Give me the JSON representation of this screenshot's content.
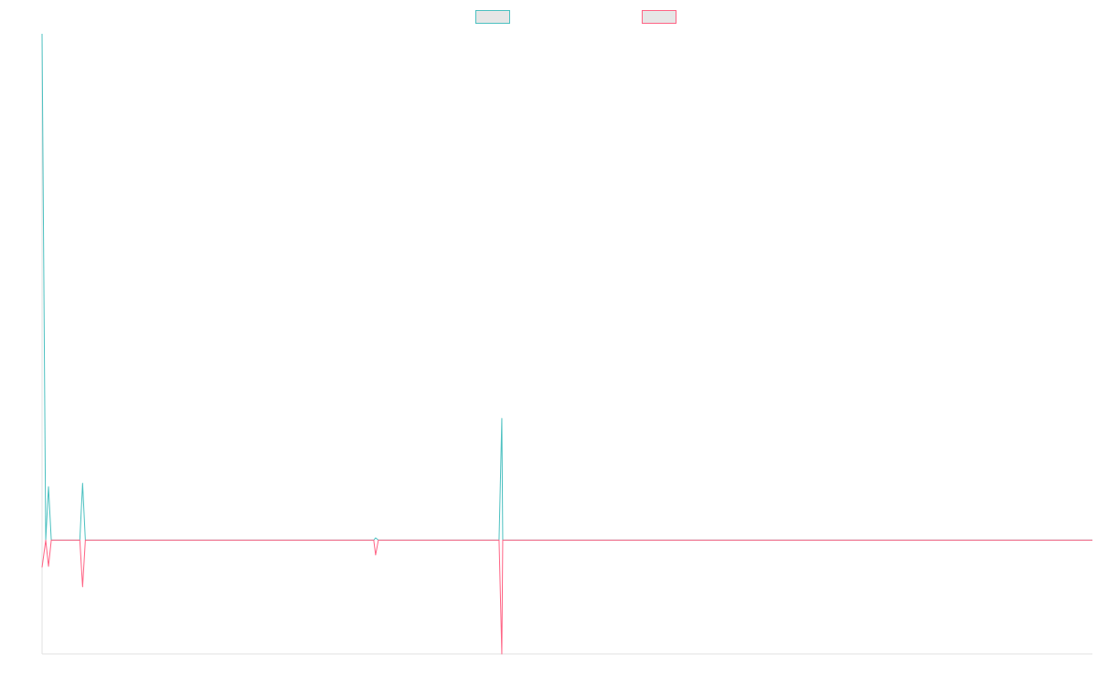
{
  "chart_data": {
    "type": "line",
    "title": "",
    "xlabel": "",
    "ylabel": "",
    "grid": false,
    "legend_placement": "top-center",
    "x_count": 115,
    "xlim": [
      0,
      114
    ],
    "ylim": [
      -100,
      445
    ],
    "series": [
      {
        "color": "#4bc0c0",
        "fill": "#e6e6e6",
        "values": [
          445,
          0,
          0,
          0,
          0,
          0,
          0,
          0,
          0,
          0,
          0,
          0,
          0,
          0,
          0,
          0,
          0,
          0,
          0,
          0,
          0,
          0,
          0,
          0,
          0,
          0,
          0,
          0,
          0,
          0,
          0,
          0,
          0,
          0,
          0,
          0,
          0,
          0,
          0,
          0,
          0,
          0,
          0,
          0,
          0,
          0,
          0,
          0,
          0,
          0,
          0,
          0,
          0,
          0,
          0,
          0,
          0,
          0,
          0,
          0,
          0,
          0,
          0,
          0,
          0,
          0,
          0,
          0,
          0,
          0,
          0,
          0,
          0,
          0,
          0,
          0,
          0,
          0,
          0,
          0,
          0,
          0,
          0,
          0,
          0,
          0,
          0,
          0,
          0,
          0,
          0,
          0,
          0,
          0,
          0,
          0,
          0,
          0,
          0,
          0,
          0,
          0,
          0,
          0,
          0,
          0,
          0,
          0,
          0,
          0,
          0,
          0,
          0,
          0,
          0
        ],
        "spikes": [
          {
            "x": 0.7,
            "y": 47
          },
          {
            "x": 4.4,
            "y": 50
          },
          {
            "x": 36.2,
            "y": 2
          },
          {
            "x": 49.9,
            "y": 107
          }
        ]
      },
      {
        "color": "#ff6384",
        "fill": "#e6e6e6",
        "values": [
          -24,
          0,
          0,
          0,
          0,
          0,
          0,
          0,
          0,
          0,
          0,
          0,
          0,
          0,
          0,
          0,
          0,
          0,
          0,
          0,
          0,
          0,
          0,
          0,
          0,
          0,
          0,
          0,
          0,
          0,
          0,
          0,
          0,
          0,
          0,
          0,
          0,
          0,
          0,
          0,
          0,
          0,
          0,
          0,
          0,
          0,
          0,
          0,
          0,
          0,
          0,
          0,
          0,
          0,
          0,
          0,
          0,
          0,
          0,
          0,
          0,
          0,
          0,
          0,
          0,
          0,
          0,
          0,
          0,
          0,
          0,
          0,
          0,
          0,
          0,
          0,
          0,
          0,
          0,
          0,
          0,
          0,
          0,
          0,
          0,
          0,
          0,
          0,
          0,
          0,
          0,
          0,
          0,
          0,
          0,
          0,
          0,
          0,
          0,
          0,
          0,
          0,
          0,
          0,
          0,
          0,
          0,
          0,
          0,
          0,
          0,
          0,
          0,
          0,
          0
        ],
        "spikes": [
          {
            "x": 0.7,
            "y": -23
          },
          {
            "x": 4.4,
            "y": -41
          },
          {
            "x": 36.2,
            "y": -13
          },
          {
            "x": 49.9,
            "y": -100
          }
        ]
      }
    ]
  }
}
